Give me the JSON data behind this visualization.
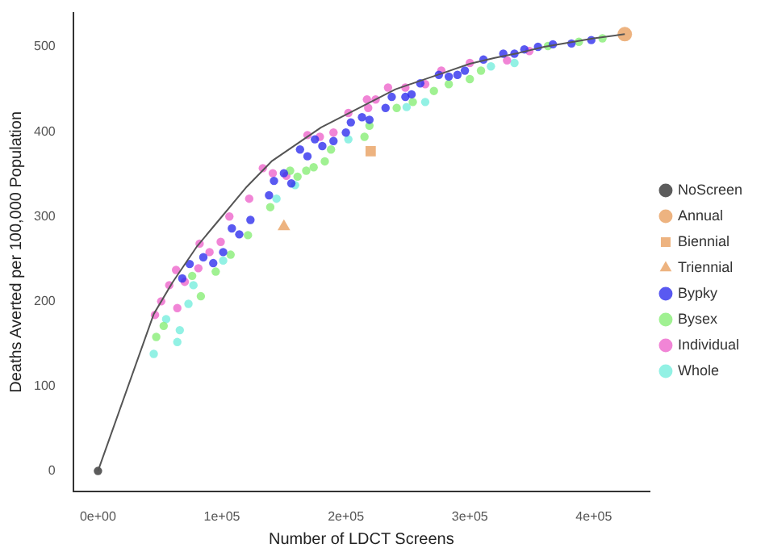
{
  "chart_data": {
    "type": "scatter",
    "xlabel": "Number of LDCT Screens",
    "ylabel": "Deaths Averted per 100,000 Population",
    "xlim": [
      -20000,
      445000
    ],
    "ylim": [
      -24,
      540
    ],
    "xticks": [
      {
        "value": 0,
        "label": "0e+00"
      },
      {
        "value": 100000,
        "label": "1e+05"
      },
      {
        "value": 200000,
        "label": "2e+05"
      },
      {
        "value": 300000,
        "label": "3e+05"
      },
      {
        "value": 400000,
        "label": "4e+05"
      }
    ],
    "yticks": [
      0,
      100,
      200,
      300,
      400,
      500
    ],
    "grid": false,
    "legend": "right",
    "series": [
      {
        "type": "line",
        "color": "#555555",
        "marker": "none",
        "line_style": "solid",
        "x": [
          0,
          45000,
          60000,
          80000,
          100000,
          120000,
          140000,
          160000,
          180000,
          200000,
          220000,
          240000,
          260000,
          280000,
          300000,
          320000,
          340000,
          360000,
          380000,
          400000,
          425000
        ],
        "values": [
          0,
          185,
          222,
          265,
          300,
          335,
          365,
          385,
          405,
          420,
          435,
          450,
          460,
          470,
          480,
          487,
          493,
          500,
          505,
          510,
          515
        ]
      },
      {
        "name": "NoScreen",
        "color": "#333333",
        "marker": "circle",
        "x": [
          0
        ],
        "values": [
          0
        ]
      },
      {
        "name": "Annual",
        "color": "#e8a060",
        "marker": "circle",
        "x": [
          425000
        ],
        "values": [
          515
        ]
      },
      {
        "name": "Biennial",
        "color": "#e8a060",
        "marker": "square",
        "x": [
          220000
        ],
        "values": [
          377
        ]
      },
      {
        "name": "Triennial",
        "color": "#e8a060",
        "marker": "triangle",
        "x": [
          150000
        ],
        "values": [
          288
        ]
      },
      {
        "name": "Bypky",
        "color": "#3030ee",
        "marker": "circle",
        "x": [
          68000,
          74000,
          85000,
          93000,
          101000,
          108000,
          114000,
          123000,
          138000,
          142000,
          150000,
          156000,
          163000,
          169000,
          175000,
          181000,
          190000,
          200000,
          204000,
          213000,
          219000,
          232000,
          237000,
          248000,
          253000,
          260000,
          275000,
          283000,
          290000,
          296000,
          311000,
          327000,
          336000,
          344000,
          355000,
          367000,
          382000,
          398000
        ],
        "values": [
          227,
          244,
          252,
          245,
          258,
          286,
          279,
          296,
          325,
          342,
          351,
          339,
          379,
          371,
          391,
          383,
          389,
          399,
          411,
          417,
          414,
          428,
          441,
          441,
          444,
          457,
          467,
          465,
          467,
          472,
          485,
          492,
          492,
          497,
          500,
          503,
          504,
          508
        ]
      },
      {
        "name": "Bysex",
        "color": "#88ee77",
        "marker": "circle",
        "x": [
          47000,
          53000,
          76000,
          83000,
          95000,
          107000,
          121000,
          139000,
          155000,
          161000,
          168000,
          174000,
          183000,
          188000,
          215000,
          219000,
          241000,
          254000,
          271000,
          283000,
          300000,
          309000,
          363000,
          388000,
          407000
        ],
        "values": [
          158,
          171,
          230,
          206,
          235,
          255,
          278,
          311,
          354,
          347,
          354,
          358,
          365,
          379,
          394,
          407,
          428,
          435,
          448,
          456,
          462,
          472,
          501,
          506,
          510
        ]
      },
      {
        "name": "Individual",
        "color": "#ee66cc",
        "marker": "circle",
        "x": [
          46000,
          51000,
          57500,
          63000,
          64000,
          70000,
          81000,
          82000,
          90000,
          99000,
          106000,
          122000,
          133000,
          141000,
          152000,
          169000,
          179000,
          190000,
          202000,
          217000,
          218000,
          224000,
          234000,
          248000,
          264000,
          277000,
          300000,
          330000,
          348000
        ],
        "values": [
          184,
          200,
          219,
          237,
          192,
          223,
          239,
          268,
          258,
          270,
          300,
          321,
          357,
          351,
          348,
          396,
          394,
          399,
          422,
          438,
          428,
          438,
          452,
          452,
          456,
          472,
          481,
          484,
          495
        ]
      },
      {
        "name": "Whole",
        "color": "#77eedd",
        "marker": "circle",
        "x": [
          45000,
          55000,
          64000,
          66000,
          73000,
          77000,
          101000,
          144000,
          159000,
          202000,
          249000,
          264000,
          317000,
          336000
        ],
        "values": [
          138,
          179,
          152,
          166,
          197,
          219,
          248,
          321,
          337,
          391,
          429,
          435,
          477,
          481
        ]
      }
    ]
  }
}
